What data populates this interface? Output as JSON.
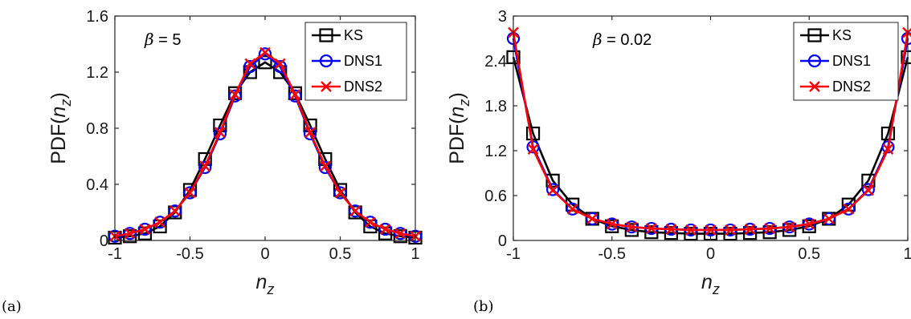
{
  "colors": {
    "KS": "#000000",
    "DNS1": "#0000ff",
    "DNS2": "#ff0000"
  },
  "chart_data": [
    {
      "type": "line",
      "panel_label": "(a)",
      "annotation": {
        "symbol": "β",
        "text": " = 5"
      },
      "xlabel": {
        "base": "n",
        "sub": "z"
      },
      "ylabel": {
        "prefix": "PDF(",
        "base": "n",
        "sub": "z",
        "suffix": ")"
      },
      "xlim": [
        -1,
        1
      ],
      "ylim": [
        0,
        1.6
      ],
      "xticks": [
        "-1",
        "-0.5",
        "0",
        "0.5",
        "1"
      ],
      "yticks": [
        "0",
        "0.4",
        "0.8",
        "1.2",
        "1.6"
      ],
      "legend_position": "top-right",
      "grid": false,
      "x": [
        -1,
        -0.9,
        -0.8,
        -0.7,
        -0.6,
        -0.5,
        -0.4,
        -0.3,
        -0.2,
        -0.1,
        0,
        0.1,
        0.2,
        0.3,
        0.4,
        0.5,
        0.6,
        0.7,
        0.8,
        0.9,
        1
      ],
      "series": [
        {
          "name": "KS",
          "marker": "square",
          "values": [
            0.02,
            0.03,
            0.05,
            0.1,
            0.2,
            0.36,
            0.58,
            0.82,
            1.05,
            1.2,
            1.27,
            1.2,
            1.05,
            0.82,
            0.58,
            0.36,
            0.2,
            0.1,
            0.05,
            0.03,
            0.02
          ]
        },
        {
          "name": "DNS1",
          "marker": "circle",
          "values": [
            0.03,
            0.05,
            0.08,
            0.13,
            0.21,
            0.34,
            0.52,
            0.76,
            1.03,
            1.24,
            1.33,
            1.24,
            1.03,
            0.76,
            0.52,
            0.34,
            0.21,
            0.13,
            0.08,
            0.05,
            0.03
          ]
        },
        {
          "name": "DNS2",
          "marker": "x",
          "values": [
            0.03,
            0.05,
            0.08,
            0.13,
            0.21,
            0.34,
            0.53,
            0.77,
            1.04,
            1.26,
            1.34,
            1.26,
            1.04,
            0.77,
            0.53,
            0.34,
            0.21,
            0.13,
            0.08,
            0.05,
            0.03
          ]
        }
      ]
    },
    {
      "type": "line",
      "panel_label": "(b)",
      "annotation": {
        "symbol": "β",
        "text": " = 0.02"
      },
      "xlabel": {
        "base": "n",
        "sub": "z"
      },
      "ylabel": {
        "prefix": "PDF(",
        "base": "n",
        "sub": "z",
        "suffix": ")"
      },
      "xlim": [
        -1,
        1
      ],
      "ylim": [
        0,
        3
      ],
      "xticks": [
        "-1",
        "-0.5",
        "0",
        "0.5",
        "1"
      ],
      "yticks": [
        "0",
        "0.6",
        "1.2",
        "1.8",
        "2.4",
        "3"
      ],
      "legend_position": "top-right",
      "grid": false,
      "x": [
        -1,
        -0.9,
        -0.8,
        -0.7,
        -0.6,
        -0.5,
        -0.4,
        -0.3,
        -0.2,
        -0.1,
        0,
        0.1,
        0.2,
        0.3,
        0.4,
        0.5,
        0.6,
        0.7,
        0.8,
        0.9,
        1
      ],
      "series": [
        {
          "name": "KS",
          "marker": "square",
          "values": [
            2.45,
            1.43,
            0.8,
            0.48,
            0.29,
            0.19,
            0.14,
            0.11,
            0.1,
            0.09,
            0.09,
            0.09,
            0.1,
            0.11,
            0.14,
            0.19,
            0.29,
            0.48,
            0.8,
            1.43,
            2.45
          ]
        },
        {
          "name": "DNS1",
          "marker": "circle",
          "values": [
            2.7,
            1.25,
            0.68,
            0.42,
            0.29,
            0.22,
            0.18,
            0.16,
            0.15,
            0.14,
            0.14,
            0.14,
            0.15,
            0.16,
            0.18,
            0.22,
            0.29,
            0.42,
            0.68,
            1.25,
            2.7
          ]
        },
        {
          "name": "DNS2",
          "marker": "x",
          "values": [
            2.78,
            1.22,
            0.67,
            0.42,
            0.29,
            0.22,
            0.18,
            0.16,
            0.15,
            0.14,
            0.14,
            0.14,
            0.15,
            0.16,
            0.18,
            0.22,
            0.29,
            0.42,
            0.67,
            1.22,
            2.78
          ]
        }
      ]
    }
  ]
}
